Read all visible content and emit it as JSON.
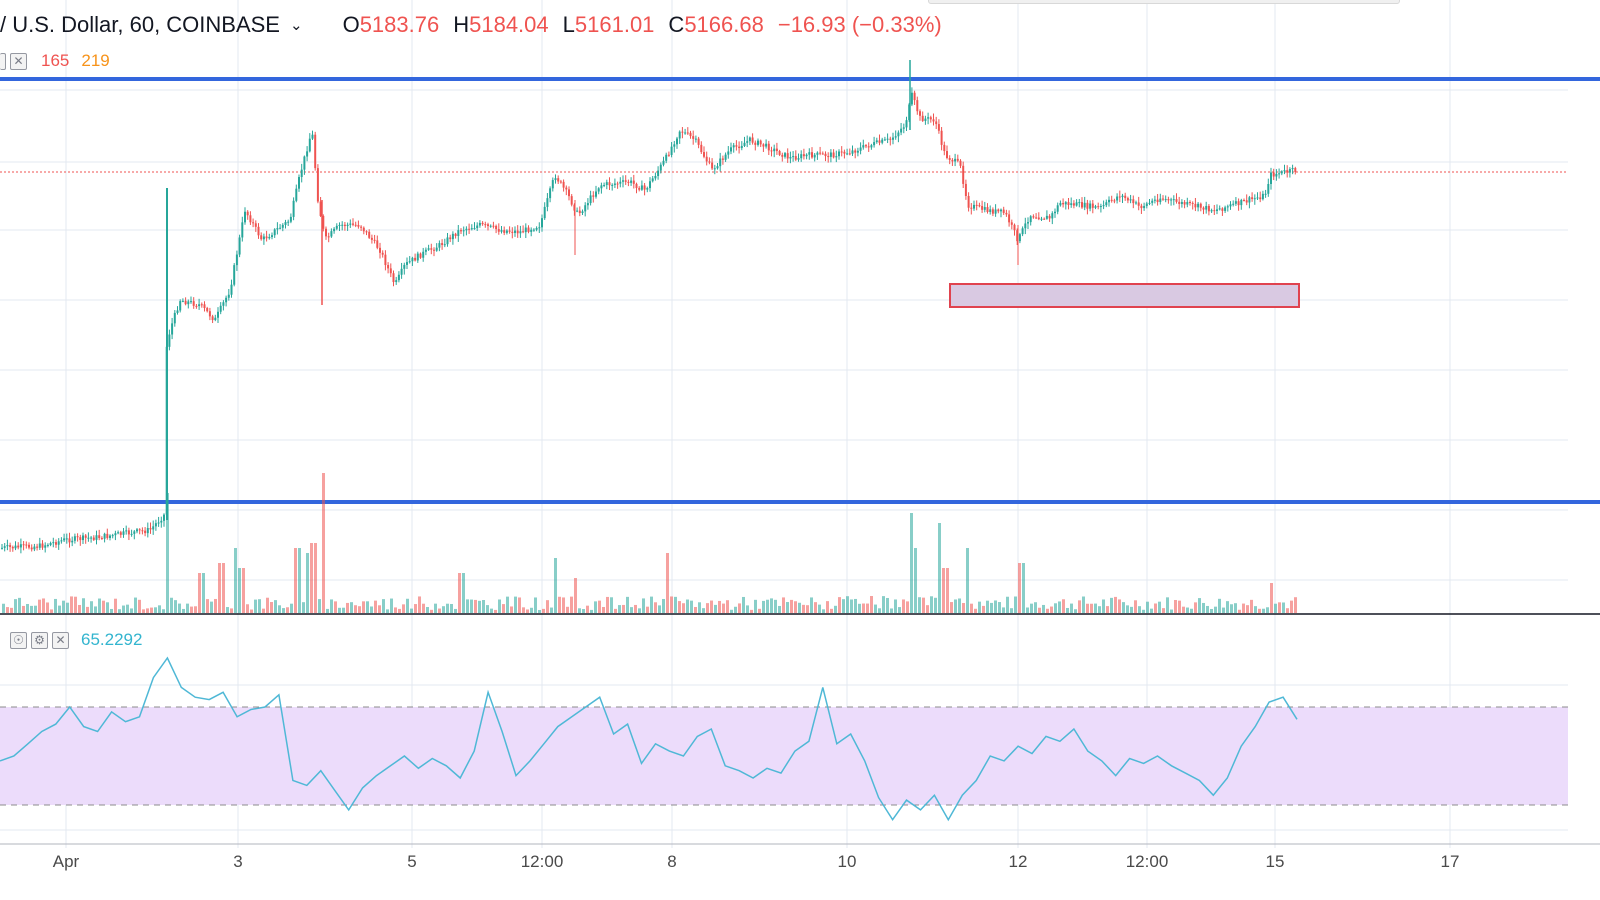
{
  "header": {
    "symbol": "/ U.S. Dollar, 60, COINBASE",
    "o_label": "O",
    "o_value": "5183.76",
    "h_label": "H",
    "h_value": "5184.04",
    "l_label": "L",
    "l_value": "5161.01",
    "c_label": "C",
    "c_value": "5166.68",
    "change": "−16.93 (−0.33%)"
  },
  "volume_legend": {
    "value1": "165",
    "value2": "219"
  },
  "rsi_legend": {
    "value": "65.2292"
  },
  "colors": {
    "up": "#26a69a",
    "down": "#ef5350",
    "level_line": "#3366dd",
    "rsi_line": "#4fb8d6",
    "rsi_band": "#ecdcfb",
    "zone_fill": "#d9c9e2",
    "zone_border": "#e0434f"
  },
  "x_axis_labels": [
    "Apr",
    "3",
    "5",
    "12:00",
    "8",
    "10",
    "12",
    "12:00",
    "15",
    "17"
  ],
  "chart_data": {
    "type": "candlestick",
    "interval": "60",
    "exchange": "COINBASE",
    "last_close": 5166.68,
    "key_points": [
      {
        "x": "Apr 1",
        "close": 4130
      },
      {
        "x": "Apr 2",
        "close": 4560
      },
      {
        "x": "Apr 2",
        "close": 4880
      },
      {
        "x": "Apr 3",
        "close": 4950
      },
      {
        "x": "Apr 3",
        "close": 5120
      },
      {
        "x": "Apr 4",
        "close": 4970
      },
      {
        "x": "Apr 5",
        "close": 4880
      },
      {
        "x": "Apr 5",
        "close": 4990
      },
      {
        "x": "Apr 7",
        "close": 5140
      },
      {
        "x": "Apr 8",
        "close": 5230
      },
      {
        "x": "Apr 9",
        "close": 5200
      },
      {
        "x": "Apr 10",
        "close": 5200
      },
      {
        "x": "Apr 10",
        "close": 5300
      },
      {
        "x": "Apr 11",
        "close": 5170
      },
      {
        "x": "Apr 11",
        "close": 5020
      },
      {
        "x": "Apr 12",
        "close": 4960
      },
      {
        "x": "Apr 13",
        "close": 5060
      },
      {
        "x": "Apr 14",
        "close": 5030
      },
      {
        "x": "Apr 15",
        "close": 5166.68
      }
    ],
    "rsi": {
      "last": 65.2292,
      "band": [
        30,
        70
      ],
      "values": [
        48,
        50,
        55,
        60,
        63,
        70,
        62,
        60,
        68,
        64,
        66,
        82,
        90,
        78,
        74,
        73,
        76,
        66,
        69,
        70,
        75,
        40,
        38,
        44,
        36,
        28,
        37,
        42,
        46,
        50,
        45,
        49,
        46,
        41,
        52,
        76,
        60,
        42,
        48,
        55,
        62,
        66,
        70,
        74,
        59,
        63,
        47,
        55,
        52,
        50,
        58,
        61,
        46,
        44,
        41,
        45,
        43,
        52,
        56,
        78,
        55,
        59,
        48,
        33,
        24,
        32,
        28,
        34,
        24,
        34,
        40,
        50,
        48,
        54,
        51,
        58,
        56,
        61,
        52,
        48,
        42,
        49,
        47,
        50,
        46,
        43,
        40,
        34,
        41,
        54,
        62,
        72,
        74,
        65
      ]
    },
    "volume": {
      "last_values": [
        165,
        219
      ]
    }
  }
}
